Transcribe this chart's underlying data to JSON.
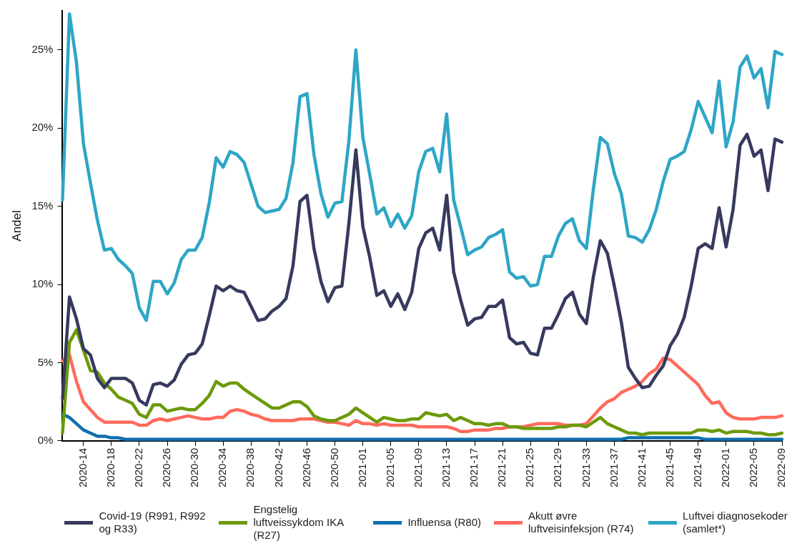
{
  "chart_data": {
    "type": "line",
    "ylabel": "Andel",
    "legend": "bottom",
    "categories": [
      null,
      null,
      null,
      "2020-14",
      null,
      null,
      null,
      "2020-18",
      null,
      null,
      null,
      "2020-22",
      null,
      null,
      null,
      "2020-26",
      null,
      null,
      null,
      "2020-30",
      null,
      null,
      null,
      "2020-34",
      null,
      null,
      null,
      "2020-38",
      null,
      null,
      null,
      "2020-42",
      null,
      null,
      null,
      "2020-46",
      null,
      null,
      null,
      "2020-50",
      null,
      null,
      null,
      "2021-01",
      null,
      null,
      null,
      "2021-05",
      null,
      null,
      null,
      "2021-09",
      null,
      null,
      null,
      "2021-13",
      null,
      null,
      null,
      "2021-17",
      null,
      null,
      null,
      "2021-21",
      null,
      null,
      null,
      "2021-25",
      null,
      null,
      null,
      "2021-29",
      null,
      null,
      null,
      "2021-33",
      null,
      null,
      null,
      "2021-37",
      null,
      null,
      null,
      "2021-41",
      null,
      null,
      null,
      "2021-45",
      null,
      null,
      null,
      "2021-49",
      null,
      null,
      null,
      "2022-01",
      null,
      null,
      null,
      "2022-05",
      null,
      null,
      null,
      "2022-09"
    ],
    "ylim": [
      0,
      27.5
    ],
    "yticks": [
      {
        "value": 0,
        "label": "0%"
      },
      {
        "value": 5,
        "label": "5%"
      },
      {
        "value": 10,
        "label": "10%"
      },
      {
        "value": 15,
        "label": "15%"
      },
      {
        "value": 20,
        "label": "20%"
      },
      {
        "value": 25,
        "label": "25%"
      }
    ],
    "series": [
      {
        "name": "Covid-19 (R991, R992 og R33)",
        "color": "#363a5e",
        "values": [
          2.7,
          9.2,
          7.8,
          5.9,
          5.5,
          4.0,
          3.4,
          4.0,
          4.0,
          4.0,
          3.7,
          2.6,
          2.3,
          3.6,
          3.7,
          3.5,
          3.9,
          4.9,
          5.5,
          5.6,
          6.2,
          8.0,
          9.9,
          9.6,
          9.9,
          9.6,
          9.5,
          8.6,
          7.7,
          7.8,
          8.3,
          8.6,
          9.1,
          11.2,
          15.3,
          15.7,
          12.3,
          10.2,
          8.9,
          9.8,
          9.9,
          13.9,
          18.6,
          13.7,
          11.7,
          9.3,
          9.6,
          8.6,
          9.4,
          8.4,
          9.5,
          12.3,
          13.3,
          13.6,
          12.2,
          15.7,
          10.8,
          9.0,
          7.4,
          7.8,
          7.9,
          8.6,
          8.6,
          9.0,
          6.6,
          6.2,
          6.3,
          5.6,
          5.5,
          7.2,
          7.2,
          8.1,
          9.1,
          9.5,
          8.1,
          7.5,
          10.5,
          12.8,
          12.0,
          9.9,
          7.6,
          4.7,
          4.0,
          3.4,
          3.5,
          4.2,
          4.8,
          6.1,
          6.8,
          7.9,
          9.9,
          12.3,
          12.6,
          12.3,
          14.9,
          12.4,
          14.8,
          18.9,
          19.6,
          18.2,
          18.6,
          16.0,
          19.3,
          19.1
        ]
      },
      {
        "name": "Engstelig luftveissykdom IKA (R27)",
        "color": "#6c9a0a",
        "values": [
          0.5,
          6.3,
          7.1,
          5.8,
          4.5,
          4.4,
          3.7,
          3.3,
          2.8,
          2.6,
          2.4,
          1.7,
          1.5,
          2.3,
          2.3,
          1.9,
          2.0,
          2.1,
          2.0,
          2.0,
          2.4,
          2.9,
          3.8,
          3.5,
          3.7,
          3.7,
          3.3,
          3.0,
          2.7,
          2.4,
          2.1,
          2.1,
          2.3,
          2.5,
          2.5,
          2.2,
          1.6,
          1.4,
          1.3,
          1.3,
          1.5,
          1.7,
          2.1,
          1.8,
          1.5,
          1.2,
          1.5,
          1.4,
          1.3,
          1.3,
          1.4,
          1.4,
          1.8,
          1.7,
          1.6,
          1.7,
          1.3,
          1.5,
          1.3,
          1.1,
          1.1,
          1.0,
          1.1,
          1.1,
          0.9,
          0.9,
          0.8,
          0.8,
          0.8,
          0.8,
          0.8,
          0.9,
          0.9,
          1.0,
          1.0,
          0.9,
          1.2,
          1.5,
          1.1,
          0.9,
          0.7,
          0.5,
          0.5,
          0.4,
          0.5,
          0.5,
          0.5,
          0.5,
          0.5,
          0.5,
          0.5,
          0.7,
          0.7,
          0.6,
          0.7,
          0.5,
          0.6,
          0.6,
          0.6,
          0.5,
          0.5,
          0.4,
          0.4,
          0.5
        ]
      },
      {
        "name": "Influensa (R80)",
        "color": "#0f6fb0",
        "values": [
          1.7,
          1.5,
          1.1,
          0.7,
          0.5,
          0.3,
          0.3,
          0.2,
          0.2,
          0.1,
          0.1,
          0.1,
          0.1,
          0.1,
          0.1,
          0.1,
          0.1,
          0.1,
          0.1,
          0.1,
          0.1,
          0.1,
          0.1,
          0.1,
          0.1,
          0.1,
          0.1,
          0.1,
          0.1,
          0.1,
          0.1,
          0.1,
          0.1,
          0.1,
          0.1,
          0.1,
          0.1,
          0.1,
          0.1,
          0.1,
          0.1,
          0.1,
          0.1,
          0.1,
          0.1,
          0.1,
          0.1,
          0.1,
          0.1,
          0.1,
          0.1,
          0.1,
          0.1,
          0.1,
          0.1,
          0.1,
          0.1,
          0.1,
          0.1,
          0.1,
          0.1,
          0.1,
          0.1,
          0.1,
          0.1,
          0.1,
          0.1,
          0.1,
          0.1,
          0.1,
          0.1,
          0.1,
          0.1,
          0.1,
          0.1,
          0.1,
          0.1,
          0.1,
          0.1,
          0.1,
          0.1,
          0.2,
          0.2,
          0.2,
          0.2,
          0.2,
          0.2,
          0.2,
          0.2,
          0.2,
          0.2,
          0.2,
          0.1,
          0.1,
          0.1,
          0.1,
          0.1,
          0.1,
          0.1,
          0.1,
          0.1,
          0.1,
          0.1,
          0.1
        ]
      },
      {
        "name": "Akutt øvre luftveisinfeksjon (R74)",
        "color": "#ff6a5c",
        "values": [
          5.1,
          5.5,
          3.8,
          2.5,
          2.0,
          1.5,
          1.2,
          1.2,
          1.2,
          1.2,
          1.2,
          1.0,
          1.0,
          1.3,
          1.4,
          1.3,
          1.4,
          1.5,
          1.6,
          1.5,
          1.4,
          1.4,
          1.5,
          1.5,
          1.9,
          2.0,
          1.9,
          1.7,
          1.6,
          1.4,
          1.3,
          1.3,
          1.3,
          1.3,
          1.4,
          1.4,
          1.4,
          1.3,
          1.2,
          1.2,
          1.1,
          1.0,
          1.3,
          1.1,
          1.1,
          1.0,
          1.1,
          1.0,
          1.0,
          1.0,
          1.0,
          0.9,
          0.9,
          0.9,
          0.9,
          0.9,
          0.8,
          0.6,
          0.6,
          0.7,
          0.7,
          0.7,
          0.8,
          0.8,
          0.9,
          0.9,
          0.9,
          1.0,
          1.1,
          1.1,
          1.1,
          1.1,
          1.0,
          1.0,
          1.0,
          1.1,
          1.6,
          2.1,
          2.5,
          2.7,
          3.1,
          3.3,
          3.5,
          3.8,
          4.3,
          4.6,
          5.3,
          5.2,
          4.8,
          4.4,
          4.0,
          3.6,
          2.9,
          2.4,
          2.5,
          1.8,
          1.5,
          1.4,
          1.4,
          1.4,
          1.5,
          1.5,
          1.5,
          1.6
        ]
      },
      {
        "name": "Luftvei diagnosekoder (samlet*)",
        "color": "#2ea6c6",
        "values": [
          15.4,
          27.3,
          24.2,
          19.0,
          16.5,
          14.1,
          12.2,
          12.3,
          11.6,
          11.2,
          10.7,
          8.5,
          7.7,
          10.2,
          10.2,
          9.4,
          10.1,
          11.6,
          12.2,
          12.2,
          13.0,
          15.2,
          18.1,
          17.5,
          18.5,
          18.3,
          17.8,
          16.4,
          15.0,
          14.6,
          14.7,
          14.8,
          15.5,
          17.8,
          22.0,
          22.2,
          18.3,
          15.8,
          14.3,
          15.2,
          15.3,
          19.2,
          25.0,
          19.4,
          17.0,
          14.5,
          14.9,
          13.7,
          14.5,
          13.6,
          14.4,
          17.2,
          18.5,
          18.7,
          17.2,
          20.9,
          15.4,
          13.7,
          11.9,
          12.2,
          12.4,
          13.0,
          13.2,
          13.5,
          10.8,
          10.4,
          10.5,
          9.9,
          10.0,
          11.8,
          11.8,
          13.1,
          13.9,
          14.2,
          12.8,
          12.3,
          16.1,
          19.4,
          19.0,
          17.1,
          15.8,
          13.1,
          13.0,
          12.7,
          13.5,
          14.8,
          16.6,
          18.0,
          18.2,
          18.5,
          19.9,
          21.7,
          20.7,
          19.7,
          23.0,
          18.8,
          20.4,
          23.9,
          24.6,
          23.2,
          23.8,
          21.3,
          24.9,
          24.7
        ]
      }
    ]
  }
}
